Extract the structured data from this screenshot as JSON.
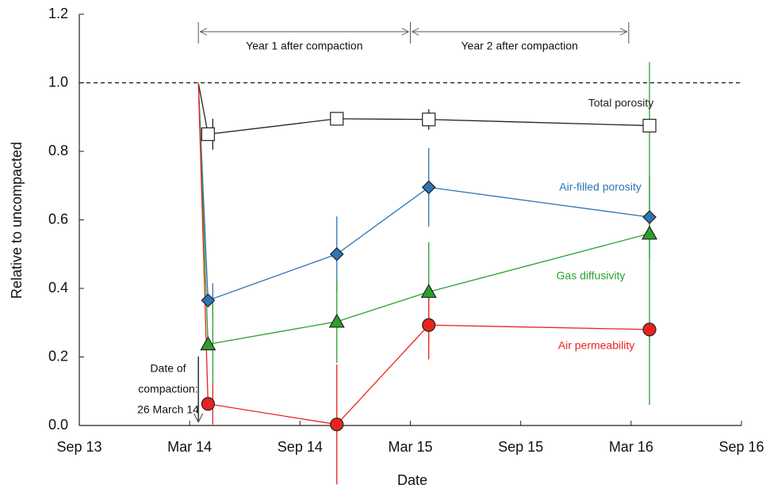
{
  "chart_data": {
    "type": "line",
    "x_label": "Date",
    "y_label": "Relative to uncompacted",
    "xlim": [
      "2013-09",
      "2016-09"
    ],
    "xticks": [
      {
        "value": "2013-09",
        "label": "Sep 13"
      },
      {
        "value": "2014-03",
        "label": "Mar 14"
      },
      {
        "value": "2014-09",
        "label": "Sep 14"
      },
      {
        "value": "2015-03",
        "label": "Mar 15"
      },
      {
        "value": "2015-09",
        "label": "Sep 15"
      },
      {
        "value": "2016-03",
        "label": "Mar 16"
      },
      {
        "value": "2016-09",
        "label": "Sep 16"
      }
    ],
    "ylim": [
      0,
      1.2
    ],
    "yticks": [
      {
        "value": 0,
        "label": "0.0"
      },
      0.2,
      0.4,
      0.6,
      0.8,
      {
        "value": 1,
        "label": "1.0"
      },
      1.2
    ],
    "reference_line": 1,
    "compaction": {
      "x": "2014-03",
      "value": 1,
      "label": [
        "Date of",
        "compaction:",
        "26 March 14"
      ]
    },
    "periods": [
      {
        "label": "Year 1 after compaction",
        "start": "2014-03",
        "end": "2015-03"
      },
      {
        "label": "Year 2 after compaction",
        "start": "2015-03",
        "end": "2016-03"
      }
    ],
    "x": [
      "2014-04",
      "2014-11",
      "2015-04",
      "2016-04"
    ],
    "series": [
      {
        "name": "Total porosity",
        "color": "#222222",
        "marker": "square",
        "fill": "#ffffff",
        "values": [
          0.85,
          0.895,
          0.893,
          0.875
        ],
        "errors": [
          0.045,
          0.01,
          0.03,
          0.01
        ]
      },
      {
        "name": "Air-filled porosity",
        "color": "#2e75b6",
        "marker": "diamond",
        "fill": "#2e75b6",
        "values": [
          0.365,
          0.5,
          0.695,
          0.608
        ],
        "errors": [
          0.05,
          0.11,
          0.115,
          0.12
        ]
      },
      {
        "name": "Gas diffusivity",
        "color": "#2ca02c",
        "marker": "triangle",
        "fill": "#2ca02c",
        "values": [
          0.237,
          0.303,
          0.39,
          0.56
        ],
        "errors": [
          0.12,
          0.12,
          0.145,
          0.5
        ]
      },
      {
        "name": "Air permeability",
        "color": "#e8231f",
        "marker": "circle",
        "fill": "#e8231f",
        "values": [
          0.063,
          0.003,
          0.293,
          0.28
        ],
        "errors": [
          0.06,
          0.175,
          0.1,
          0.02
        ]
      }
    ]
  }
}
